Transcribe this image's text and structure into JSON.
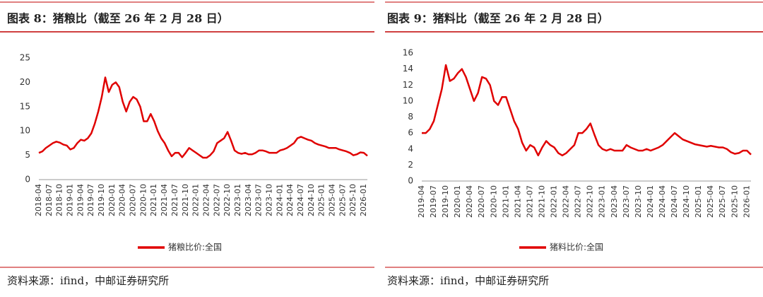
{
  "chart_data": [
    {
      "type": "line",
      "title": "图表 8：猪粮比（截至 26 年 2 月 28 日）",
      "source": "资料来源：ifind，中邮证券研究所",
      "categories": [
        "2018-04",
        null,
        null,
        "2018-07",
        null,
        null,
        "2018-10",
        null,
        null,
        "2019-01",
        null,
        null,
        "2019-04",
        null,
        null,
        "2019-07",
        null,
        null,
        "2019-10",
        null,
        null,
        "2020-01",
        null,
        null,
        "2020-04",
        null,
        null,
        "2020-07",
        null,
        null,
        "2020-10",
        null,
        null,
        "2021-01",
        null,
        null,
        "2021-04",
        null,
        null,
        "2021-07",
        null,
        null,
        "2021-10",
        null,
        null,
        "2022-01",
        null,
        null,
        "2022-04",
        null,
        null,
        "2022-07",
        null,
        null,
        "2022-10",
        null,
        null,
        "2023-01",
        null,
        null,
        "2023-04",
        null,
        null,
        "2023-07",
        null,
        null,
        "2023-10",
        null,
        null,
        "2024-01",
        null,
        null,
        "2024-04",
        null,
        null,
        "2024-07",
        null,
        null,
        "2024-10",
        null,
        null,
        "2025-01",
        null,
        null,
        "2025-04",
        null,
        null,
        "2025-07",
        null,
        null,
        "2025-10",
        null,
        null,
        "2026-01",
        null
      ],
      "series": [
        {
          "name": "猪粮比价:全国",
          "color": "#e00000",
          "values": [
            5.5,
            5.8,
            6.5,
            7.0,
            7.5,
            7.8,
            7.6,
            7.2,
            7.0,
            6.2,
            6.5,
            7.5,
            8.2,
            8.0,
            8.5,
            9.5,
            11.5,
            14,
            17,
            21,
            18,
            19.5,
            20,
            19,
            16,
            14,
            16,
            17,
            16.5,
            15,
            12,
            12,
            13.5,
            12,
            10,
            8.5,
            7.5,
            6,
            4.8,
            5.5,
            5.5,
            4.6,
            5.5,
            6.5,
            6,
            5.5,
            5,
            4.5,
            4.5,
            5,
            5.8,
            7.5,
            8,
            8.5,
            9.8,
            8,
            6,
            5.5,
            5.3,
            5.5,
            5.2,
            5.2,
            5.5,
            6,
            6,
            5.8,
            5.5,
            5.5,
            5.5,
            6,
            6.2,
            6.5,
            7,
            7.5,
            8.5,
            8.8,
            8.5,
            8.2,
            8,
            7.5,
            7.2,
            7,
            6.8,
            6.5,
            6.5,
            6.5,
            6.2,
            6,
            5.8,
            5.5,
            5,
            5.2,
            5.6,
            5.5,
            4.9
          ]
        }
      ],
      "ylim": [
        0,
        25
      ],
      "yticks": [
        0,
        5,
        10,
        15,
        20,
        25
      ]
    },
    {
      "type": "line",
      "title": "图表 9：猪料比（截至 26 年 2 月 28 日）",
      "source": "资料来源：ifind，中邮证券研究所",
      "categories": [
        "2019-04",
        null,
        null,
        "2019-07",
        null,
        null,
        "2019-10",
        null,
        null,
        "2020-01",
        null,
        null,
        "2020-04",
        null,
        null,
        "2020-07",
        null,
        null,
        "2020-10",
        null,
        null,
        "2021-01",
        null,
        null,
        "2021-04",
        null,
        null,
        "2021-07",
        null,
        null,
        "2021-10",
        null,
        null,
        "2022-01",
        null,
        null,
        "2022-04",
        null,
        null,
        "2022-07",
        null,
        null,
        "2022-10",
        null,
        null,
        "2023-01",
        null,
        null,
        "2023-04",
        null,
        null,
        "2023-07",
        null,
        null,
        "2023-10",
        null,
        null,
        "2024-01",
        null,
        null,
        "2024-04",
        null,
        null,
        "2024-07",
        null,
        null,
        "2024-10",
        null,
        null,
        "2025-01",
        null,
        null,
        "2025-04",
        null,
        null,
        "2025-07",
        null,
        null,
        "2025-10",
        null,
        null,
        "2026-01",
        null
      ],
      "series": [
        {
          "name": "猪料比价:全国",
          "color": "#e00000",
          "values": [
            6.0,
            6.0,
            6.5,
            7.5,
            9.5,
            11.5,
            14.5,
            12.5,
            12.8,
            13.5,
            14,
            13,
            11.5,
            10,
            11,
            13,
            12.8,
            12,
            10,
            9.5,
            10.5,
            10.5,
            9,
            7.5,
            6.5,
            4.8,
            3.8,
            4.5,
            4.2,
            3.2,
            4.2,
            5,
            4.5,
            4.2,
            3.5,
            3.2,
            3.5,
            4,
            4.5,
            6,
            6,
            6.5,
            7.2,
            5.8,
            4.5,
            4,
            3.8,
            4,
            3.8,
            3.8,
            3.8,
            4.5,
            4.2,
            4,
            3.8,
            3.8,
            4,
            3.8,
            4,
            4.2,
            4.5,
            5,
            5.5,
            6,
            5.6,
            5.2,
            5,
            4.8,
            4.6,
            4.5,
            4.4,
            4.3,
            4.4,
            4.3,
            4.2,
            4.2,
            4,
            3.6,
            3.4,
            3.5,
            3.8,
            3.8,
            3.3
          ]
        }
      ],
      "ylim": [
        0,
        16
      ],
      "yticks": [
        0,
        2,
        4,
        6,
        8,
        10,
        12,
        14,
        16
      ]
    }
  ]
}
